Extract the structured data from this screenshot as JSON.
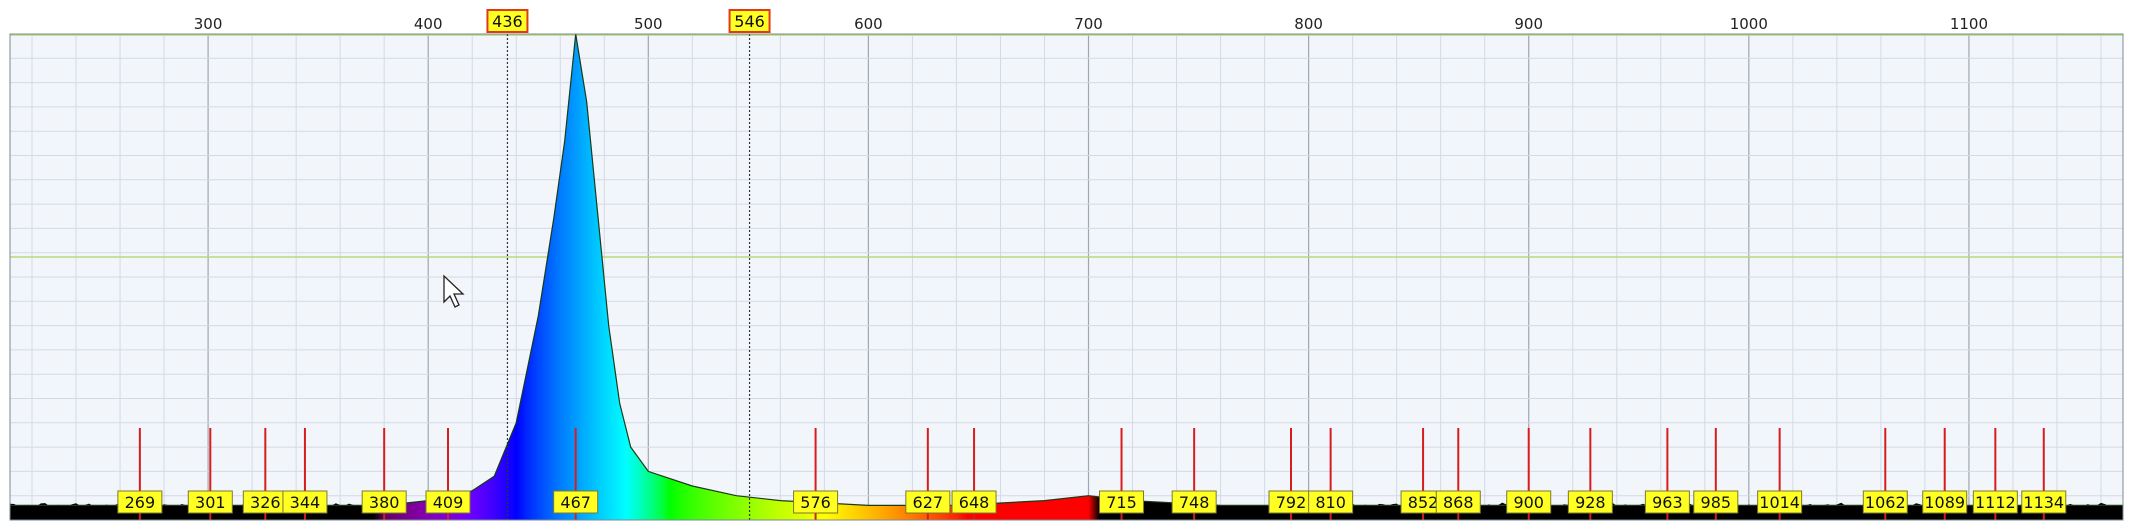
{
  "chart_data": {
    "type": "area",
    "title": "",
    "xlabel": "",
    "ylabel": "",
    "xlim": [
      210,
      1170
    ],
    "ylim": [
      0,
      100
    ],
    "grid": true,
    "x_ticks": [
      300,
      400,
      500,
      600,
      700,
      800,
      900,
      1000,
      1100
    ],
    "markers": [
      436,
      546
    ],
    "peaks": [
      269,
      301,
      326,
      344,
      380,
      409,
      467,
      576,
      627,
      648,
      715,
      748,
      792,
      810,
      852,
      868,
      900,
      928,
      963,
      985,
      1014,
      1062,
      1089,
      1112,
      1134
    ],
    "series": [
      {
        "x": [
          210,
          300,
          380,
          400,
          420,
          430,
          440,
          450,
          457,
          462,
          467,
          472,
          477,
          482,
          487,
          492,
          500,
          520,
          540,
          560,
          600,
          640,
          680,
          700,
          720,
          760,
          800,
          900,
          1000,
          1100,
          1170
        ],
        "values": [
          3,
          3,
          3,
          4,
          6,
          9,
          20,
          42,
          62,
          78,
          100,
          86,
          63,
          40,
          24,
          15,
          10,
          7,
          5,
          4,
          3,
          3,
          4,
          5,
          4,
          3,
          3,
          3,
          3,
          3,
          3
        ]
      }
    ]
  },
  "colors": {
    "plot_background": "#f2f6fb",
    "grid_minor": "#d2dae5",
    "grid_major": "#9ea6b0",
    "grid_horizontal_accent": "#b9d97a",
    "baseline_fill": "#000000",
    "peak_line": "#d81c1c",
    "label_fill": "#ffff22",
    "label_border": "#7a7a30",
    "marker_label_border": "#e03a1a"
  },
  "icons": {
    "cursor": "mouse-pointer-icon"
  }
}
